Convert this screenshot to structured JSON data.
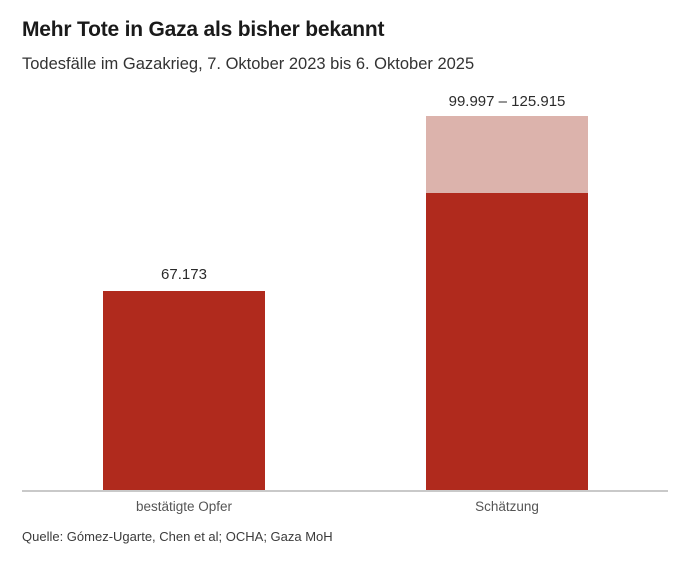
{
  "header": {
    "title": "Mehr Tote in Gaza als bisher bekannt",
    "subtitle": "Todesfälle im Gazakrieg, 7. Oktober 2023 bis 6. Oktober 2025"
  },
  "footer": {
    "source": "Quelle: Gómez-Ugarte, Chen et al; OCHA; Gaza MoH"
  },
  "colors": {
    "bar_dark_red": "#b02a1d",
    "bar_light_pink": "#dcb3ac",
    "axis_line": "#c9c9c9",
    "title_text": "#1a1a1a",
    "subtitle_text": "#333333",
    "value_label_text": "#2b2b2b",
    "category_label_text": "#555555",
    "source_text": "#3b3b3b",
    "background": "#ffffff"
  },
  "chart_data": {
    "type": "bar",
    "title": "Mehr Tote in Gaza als bisher bekannt",
    "subtitle": "Todesfälle im Gazakrieg, 7. Oktober 2023 bis 6. Oktober 2025",
    "categories": [
      "bestätigte Opfer",
      "Schätzung"
    ],
    "bars": [
      {
        "category": "bestätigte Opfer",
        "value": 67173,
        "value_label": "67.173",
        "segments": [
          {
            "name": "confirmed-deaths",
            "value": 67173,
            "color": "#b02a1d"
          }
        ]
      },
      {
        "category": "Schätzung",
        "value_min": 99997,
        "value_max": 125915,
        "value_label": "99.997 – 125.915",
        "segments": [
          {
            "name": "estimate-lower-bound",
            "value": 99997,
            "color": "#b02a1d"
          },
          {
            "name": "estimate-upper-range",
            "value": 25918,
            "color": "#dcb3ac"
          }
        ]
      }
    ],
    "ylim": [
      0,
      125915
    ],
    "xlabel": "",
    "ylabel": "",
    "grid": false,
    "legend": false,
    "source": "Quelle: Gómez-Ugarte, Chen et al; OCHA; Gaza MoH"
  }
}
